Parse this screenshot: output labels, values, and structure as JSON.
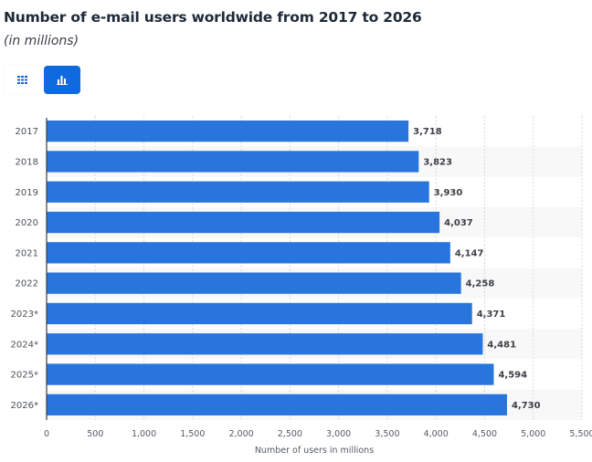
{
  "header": {
    "title": "Number of e-mail users worldwide from 2017 to 2026",
    "subtitle": "(in millions)"
  },
  "view_toggle": {
    "table_icon": "grid-table-icon",
    "chart_icon": "bar-chart-icon",
    "active": "chart",
    "active_color": "#0f6adf"
  },
  "chart_data": {
    "type": "bar",
    "orientation": "horizontal",
    "title": "Number of e-mail users worldwide from 2017 to 2026",
    "subtitle": "(in millions)",
    "categories": [
      "2017",
      "2018",
      "2019",
      "2020",
      "2021",
      "2022",
      "2023*",
      "2024*",
      "2025*",
      "2026*"
    ],
    "values": [
      3718,
      3823,
      3930,
      4037,
      4147,
      4258,
      4371,
      4481,
      4594,
      4730
    ],
    "value_labels": [
      "3,718",
      "3,823",
      "3,930",
      "4,037",
      "4,147",
      "4,258",
      "4,371",
      "4,481",
      "4,594",
      "4,730"
    ],
    "xlabel": "Number of users in millions",
    "ylabel": "",
    "xlim": [
      0,
      5500
    ],
    "xticks": [
      0,
      500,
      1000,
      1500,
      2000,
      2500,
      3000,
      3500,
      4000,
      4500,
      5000,
      5500
    ],
    "xtick_labels": [
      "0",
      "500",
      "1,000",
      "1,500",
      "2,000",
      "2,500",
      "3,000",
      "3,500",
      "4,000",
      "4,500",
      "5,000",
      "5,500"
    ],
    "grid": true,
    "legend": "none",
    "bar_color": "#2876dd",
    "band_color": "#f8f8f8"
  }
}
